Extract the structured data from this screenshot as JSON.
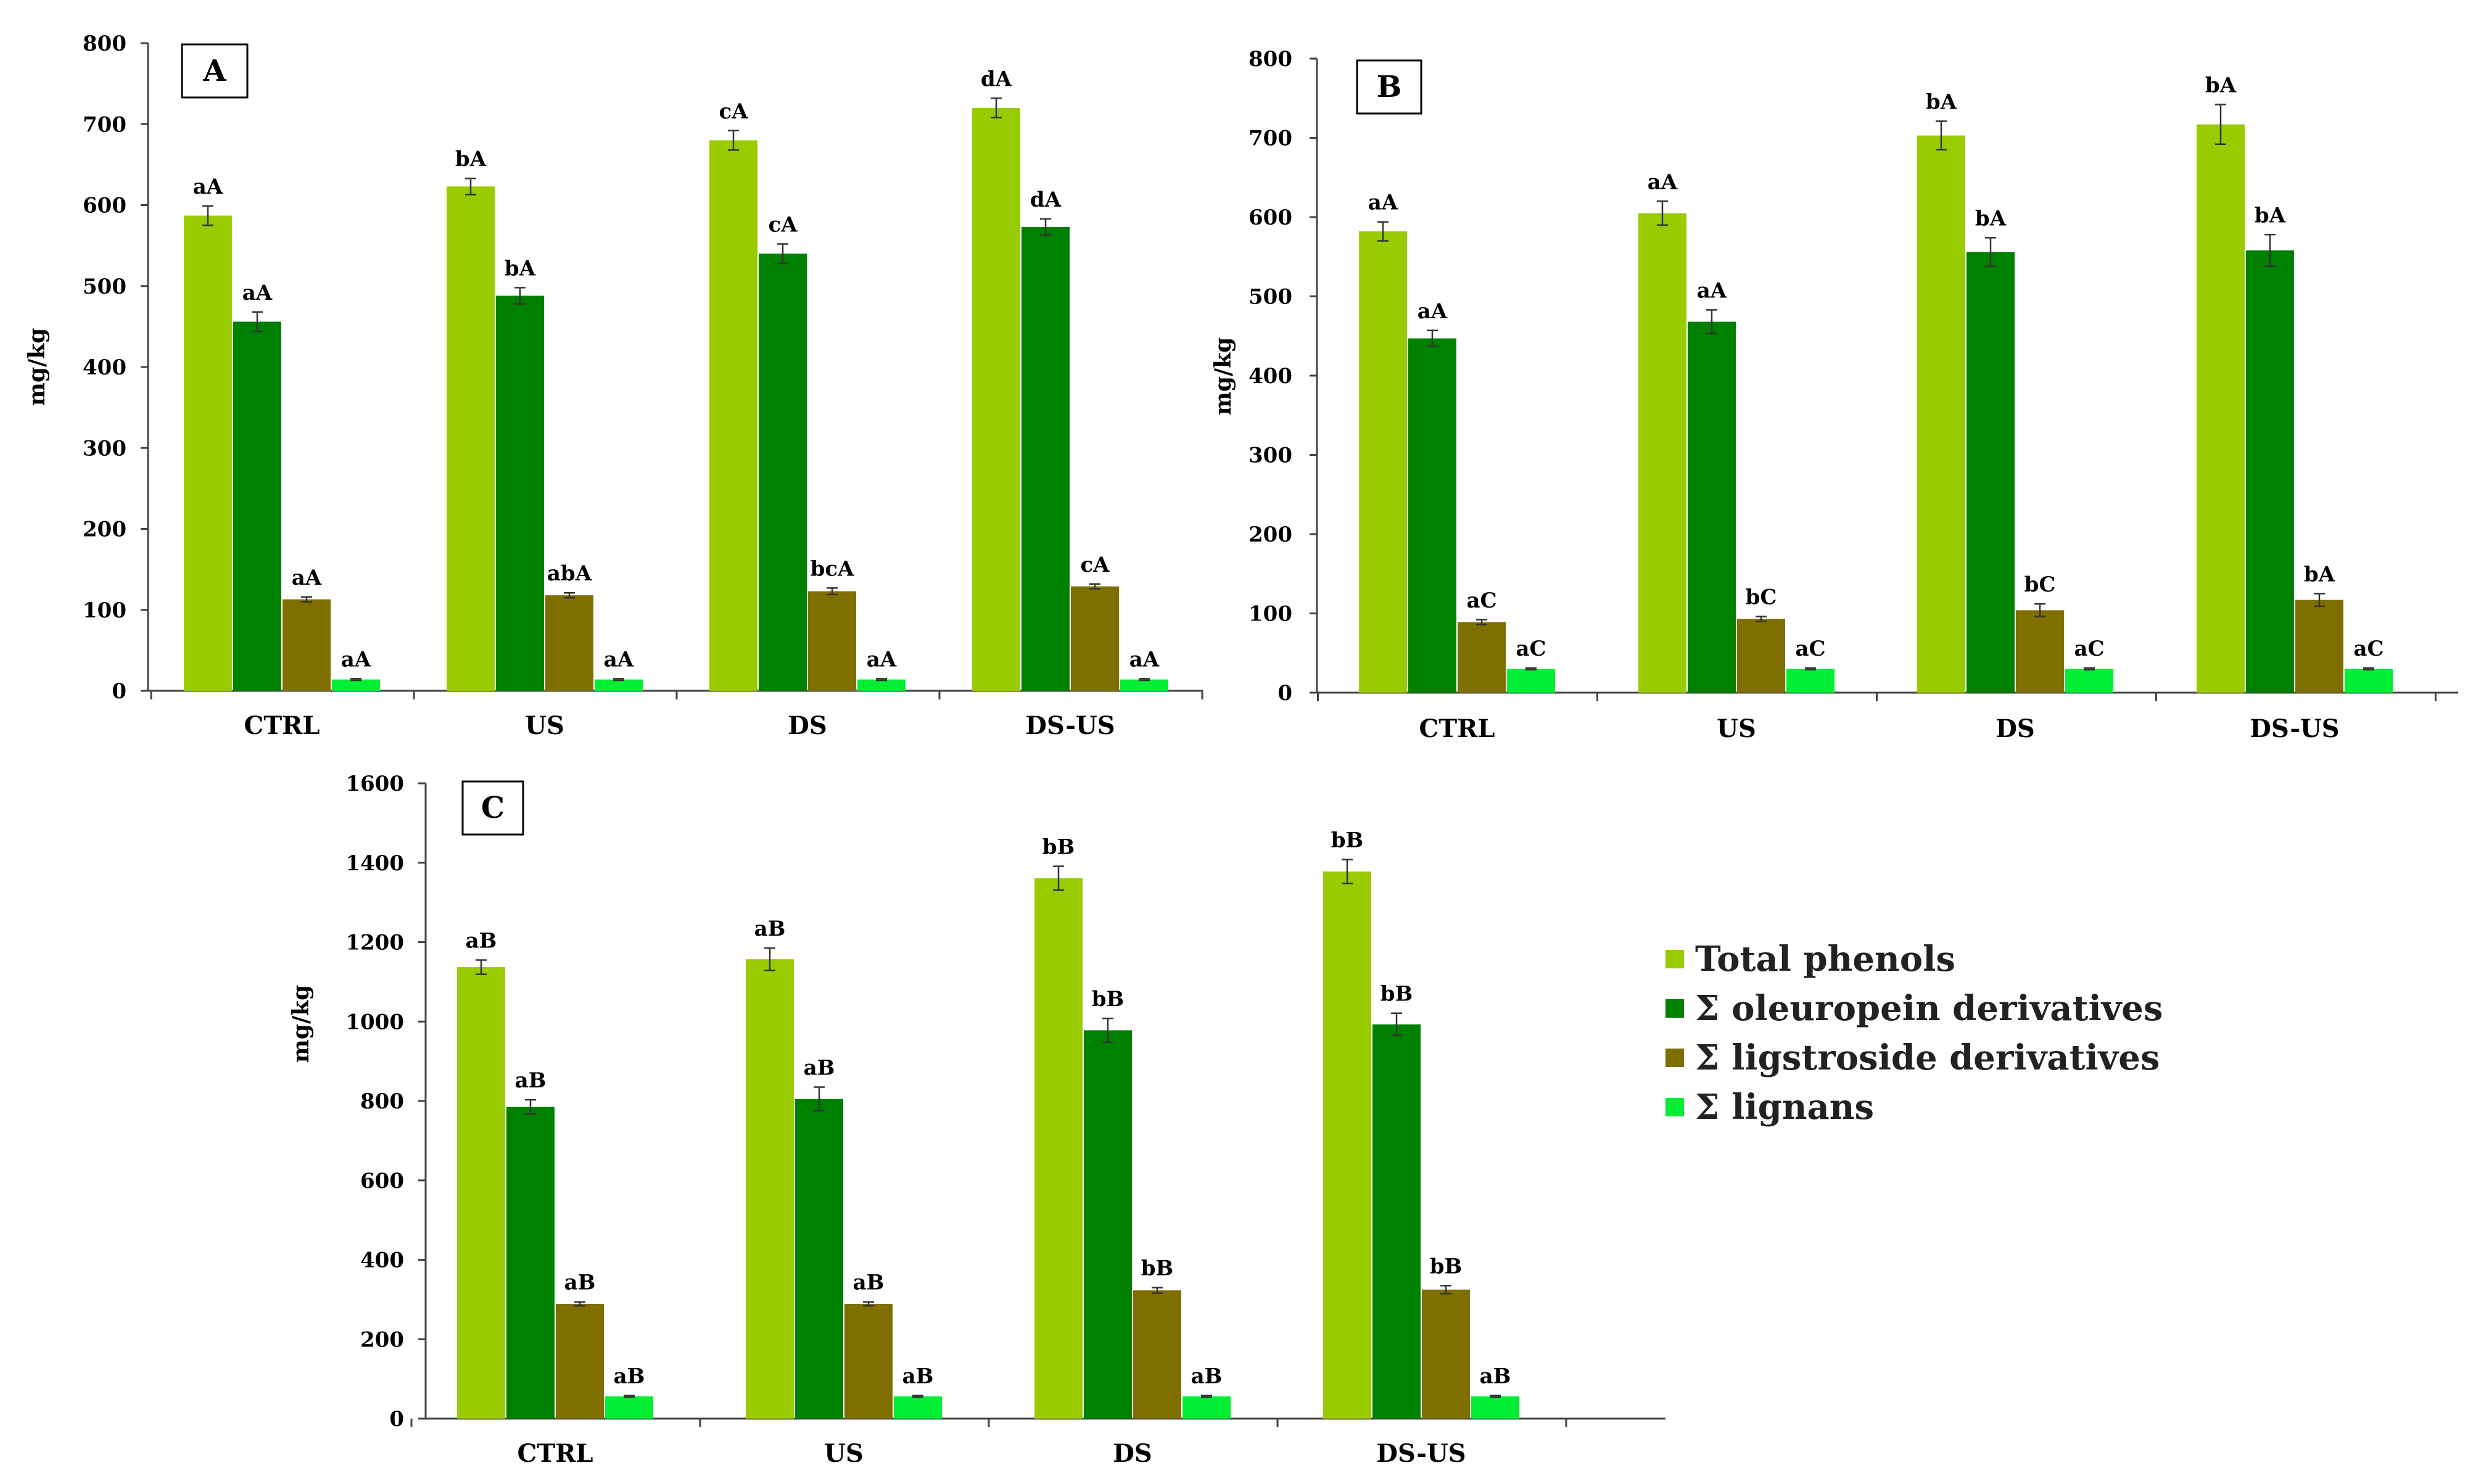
{
  "chart_data": [
    {
      "type": "bar",
      "title": "A",
      "ylabel": "mg/kg",
      "xlabel": "",
      "ylim": [
        0,
        800
      ],
      "yticks": [
        0,
        100,
        200,
        300,
        400,
        500,
        600,
        700,
        800
      ],
      "categories": [
        "CTRL",
        "US",
        "DS",
        "DS-US"
      ],
      "series": [
        {
          "name": "Total phenols",
          "values": [
            587,
            623,
            680,
            720
          ],
          "errors": [
            12,
            10,
            12,
            12
          ],
          "labels": [
            "aA",
            "bA",
            "cA",
            "dA"
          ]
        },
        {
          "name": "Σ oleuropein derivatives",
          "values": [
            456,
            488,
            540,
            573
          ],
          "errors": [
            12,
            10,
            12,
            10
          ],
          "labels": [
            "aA",
            "bA",
            "cA",
            "dA"
          ]
        },
        {
          "name": "Σ ligstroside derivatives",
          "values": [
            113,
            118,
            123,
            129
          ],
          "errors": [
            3,
            3,
            4,
            3
          ],
          "labels": [
            "aA",
            "abA",
            "bcA",
            "cA"
          ]
        },
        {
          "name": "Σ lignans",
          "values": [
            14,
            14,
            14,
            14
          ],
          "errors": [
            1,
            1,
            1,
            1
          ],
          "labels": [
            "aA",
            "aA",
            "aA",
            "aA"
          ]
        }
      ]
    },
    {
      "type": "bar",
      "title": "B",
      "ylabel": "mg/kg",
      "xlabel": "",
      "ylim": [
        0,
        800
      ],
      "yticks": [
        0,
        100,
        200,
        300,
        400,
        500,
        600,
        700,
        800
      ],
      "categories": [
        "CTRL",
        "US",
        "DS",
        "DS-US"
      ],
      "series": [
        {
          "name": "Total phenols",
          "values": [
            582,
            605,
            703,
            717
          ],
          "errors": [
            12,
            15,
            18,
            25
          ],
          "labels": [
            "aA",
            "aA",
            "bA",
            "bA"
          ]
        },
        {
          "name": "Σ oleuropein derivatives",
          "values": [
            447,
            468,
            556,
            558
          ],
          "errors": [
            10,
            15,
            18,
            20
          ],
          "labels": [
            "aA",
            "aA",
            "bA",
            "bA"
          ]
        },
        {
          "name": "Σ ligstroside derivatives",
          "values": [
            89,
            93,
            104,
            117
          ],
          "errors": [
            3,
            3,
            8,
            8
          ],
          "labels": [
            "aC",
            "bC",
            "bC",
            "bA"
          ]
        },
        {
          "name": "Σ lignans",
          "values": [
            30,
            30,
            30,
            30
          ],
          "errors": [
            1,
            1,
            1,
            1
          ],
          "labels": [
            "aC",
            "aC",
            "aC",
            "aC"
          ]
        }
      ]
    },
    {
      "type": "bar",
      "title": "C",
      "ylabel": "mg/kg",
      "xlabel": "",
      "ylim": [
        0,
        1600
      ],
      "yticks": [
        0,
        200,
        400,
        600,
        800,
        1000,
        1200,
        1400,
        1600
      ],
      "categories": [
        "CTRL",
        "US",
        "DS",
        "DS-US"
      ],
      "series": [
        {
          "name": "Total phenols",
          "values": [
            1137,
            1157,
            1361,
            1378
          ],
          "errors": [
            18,
            28,
            30,
            30
          ],
          "labels": [
            "aB",
            "aB",
            "bB",
            "bB"
          ]
        },
        {
          "name": "Σ oleuropein derivatives",
          "values": [
            785,
            805,
            978,
            993
          ],
          "errors": [
            18,
            30,
            30,
            28
          ],
          "labels": [
            "aB",
            "aB",
            "bB",
            "bB"
          ]
        },
        {
          "name": "Σ ligstroside derivatives",
          "values": [
            289,
            289,
            323,
            325
          ],
          "errors": [
            5,
            5,
            7,
            10
          ],
          "labels": [
            "aB",
            "aB",
            "bB",
            "bB"
          ]
        },
        {
          "name": "Σ lignans",
          "values": [
            56,
            56,
            56,
            56
          ],
          "errors": [
            2,
            2,
            2,
            2
          ],
          "labels": [
            "aB",
            "aB",
            "aB",
            "aB"
          ]
        }
      ]
    }
  ],
  "legend": [
    {
      "label": "Total phenols",
      "color": "#99cc00"
    },
    {
      "label": "Σ oleuropein derivatives",
      "color": "#008000"
    },
    {
      "label": "Σ ligstroside derivatives",
      "color": "#7f6f00"
    },
    {
      "label": "Σ lignans",
      "color": "#00ee33"
    }
  ]
}
